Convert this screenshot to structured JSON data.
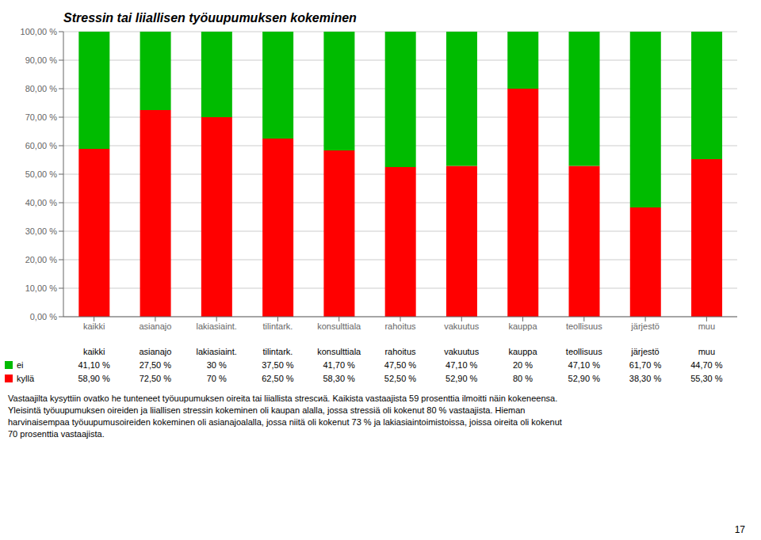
{
  "chart_data": {
    "type": "bar",
    "title": "Stressin tai liiallisen työuupumuksen kokeminen",
    "categories": [
      "kaikki",
      "asianajo",
      "lakiasiaint.",
      "tilintark.",
      "konsulttiala",
      "rahoitus",
      "vakuutus",
      "kauppa",
      "teollisuus",
      "järjestö",
      "muu"
    ],
    "series": [
      {
        "name": "kyllä",
        "color": "#ff0000",
        "values": [
          58.9,
          72.5,
          70.0,
          62.5,
          58.3,
          52.5,
          52.9,
          80.0,
          52.9,
          38.3,
          55.3
        ],
        "value_labels": [
          "58,90 %",
          "72,50 %",
          "70 %",
          "62,50 %",
          "58,30 %",
          "52,50 %",
          "52,90 %",
          "80 %",
          "52,90 %",
          "38,30 %",
          "55,30 %"
        ]
      },
      {
        "name": "ei",
        "color": "#00bb00",
        "values": [
          41.1,
          27.5,
          30.0,
          37.5,
          41.7,
          47.5,
          47.1,
          20.0,
          47.1,
          61.7,
          44.7
        ],
        "value_labels": [
          "41,10 %",
          "27,50 %",
          "30 %",
          "37,50 %",
          "41,70 %",
          "47,50 %",
          "47,10 %",
          "20 %",
          "47,10 %",
          "61,70 %",
          "44,70 %"
        ]
      }
    ],
    "stacked": true,
    "grid": true,
    "ylim": [
      0,
      100
    ],
    "yticks": [
      {
        "value": 0,
        "label": "0,00 %"
      },
      {
        "value": 10,
        "label": "10,00 %"
      },
      {
        "value": 20,
        "label": "20,00 %"
      },
      {
        "value": 30,
        "label": "30,00 %"
      },
      {
        "value": 40,
        "label": "40,00 %"
      },
      {
        "value": 50,
        "label": "50,00 %"
      },
      {
        "value": 60,
        "label": "60,00 %"
      },
      {
        "value": 70,
        "label": "70,00 %"
      },
      {
        "value": 80,
        "label": "80,00 %"
      },
      {
        "value": 90,
        "label": "90,00 %"
      },
      {
        "value": 100,
        "label": "100,00 %"
      }
    ],
    "annotations": [
      "Vastaajilta kysyttiin ovatko he tunteneet työuupumuksen oireita tai liiallista stresсиä. Kaikista vastaajista 59 prosenttia ilmoitti näin kokeneensa.\nYleisintä työuupumuksen oireiden ja liiallisen stressin kokeminen oli kaupan alalla, jossa stressiä oli kokenut 80 % vastaajista. Hieman\nharvinaisempaa työuupumusoireiden kokeminen oli asianajoalalla, jossa niitä oli kokenut 73 % ja lakiasiaintoimistoissa, joissa oireita oli kokenut\n70 prosenttia vastaajista.",
      "17"
    ]
  }
}
